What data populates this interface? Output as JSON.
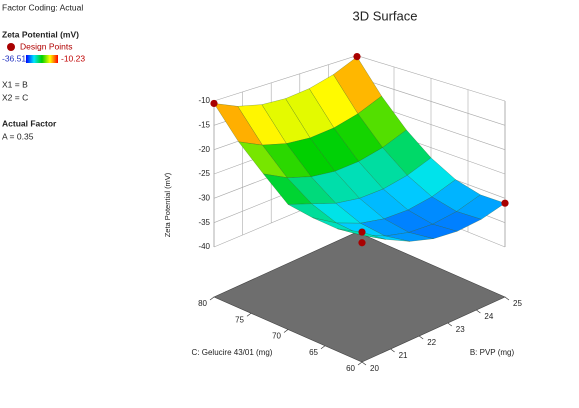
{
  "header": "Factor Coding: Actual",
  "chart_data": {
    "type": "surface",
    "title": "3D Surface",
    "legend_title": "Zeta Potential (mV)",
    "points_label": "Design Points",
    "color_range": [
      -36.51,
      -10.23
    ],
    "colors": [
      "#0000ff",
      "#00e5ff",
      "#00d000",
      "#ffff00",
      "#ff0000"
    ],
    "factors": [
      "X1 = B",
      "X2 = C"
    ],
    "actual_factor_title": "Actual Factor",
    "actual_factor": "A = 0.35",
    "xlabel": "B: PVP (mg)",
    "ylabel": "C: Gelucire 43/01 (mg)",
    "zlabel": "Zeta Potential (mV)",
    "x": [
      20,
      20.83,
      21.67,
      22.5,
      23.33,
      24.17,
      25
    ],
    "y": [
      60,
      63.33,
      66.67,
      70,
      73.33,
      76.67,
      80
    ],
    "z": [
      [
        -26.0,
        -29.06,
        -31.22,
        -32.5,
        -32.89,
        -32.39,
        -31.0
      ],
      [
        -27.06,
        -29.97,
        -31.99,
        -33.12,
        -33.37,
        -32.72,
        -31.19
      ],
      [
        -26.66,
        -29.42,
        -31.3,
        -32.29,
        -32.39,
        -31.6,
        -29.92
      ],
      [
        -25.8,
        -27.42,
        -29.16,
        -30.0,
        -29.96,
        -29.02,
        -27.2
      ],
      [
        -21.49,
        -23.97,
        -25.56,
        -26.26,
        -26.07,
        -24.99,
        -23.02
      ],
      [
        -16.72,
        -19.06,
        -20.5,
        -21.06,
        -20.72,
        -19.5,
        -17.39
      ],
      [
        -10.5,
        -12.69,
        -13.99,
        -14.4,
        -13.92,
        -12.56,
        -10.3
      ]
    ],
    "xlim": [
      20,
      25
    ],
    "xticks": [
      20,
      21,
      22,
      23,
      24,
      25
    ],
    "ylim": [
      60,
      80
    ],
    "yticks": [
      60,
      65,
      70,
      75,
      80
    ],
    "zlim": [
      -40,
      -10
    ],
    "zticks": [
      -40,
      -35,
      -30,
      -25,
      -20,
      -15,
      -10
    ],
    "design_points": {
      "x": [
        20,
        25,
        20,
        20,
        25
      ],
      "y": [
        80,
        80,
        60,
        60,
        60
      ],
      "z": [
        -10.5,
        -10.23,
        -26,
        -28,
        -31
      ]
    },
    "point_color": "#a80000",
    "floor_color": "#6e6e6e"
  }
}
